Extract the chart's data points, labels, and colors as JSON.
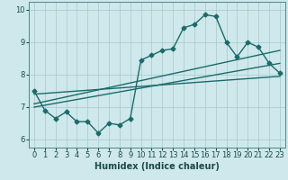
{
  "title": "",
  "xlabel": "Humidex (Indice chaleur)",
  "ylabel": "",
  "bg_color": "#cfe8eb",
  "grid_color": "#aacdd2",
  "line_color": "#1a6b6b",
  "xlim": [
    -0.5,
    23.5
  ],
  "ylim": [
    5.75,
    10.25
  ],
  "xticks": [
    0,
    1,
    2,
    3,
    4,
    5,
    6,
    7,
    8,
    9,
    10,
    11,
    12,
    13,
    14,
    15,
    16,
    17,
    18,
    19,
    20,
    21,
    22,
    23
  ],
  "yticks": [
    6,
    7,
    8,
    9,
    10
  ],
  "main_line_x": [
    0,
    1,
    2,
    3,
    4,
    5,
    6,
    7,
    8,
    9,
    10,
    11,
    12,
    13,
    14,
    15,
    16,
    17,
    18,
    19,
    20,
    21,
    22,
    23
  ],
  "main_line_y": [
    7.5,
    6.9,
    6.65,
    6.85,
    6.55,
    6.55,
    6.2,
    6.5,
    6.45,
    6.65,
    8.45,
    8.6,
    8.75,
    8.8,
    9.45,
    9.55,
    9.85,
    9.8,
    9.0,
    8.55,
    9.0,
    8.85,
    8.35,
    8.05
  ],
  "trend1_x": [
    0,
    23
  ],
  "trend1_y": [
    7.0,
    8.35
  ],
  "trend2_x": [
    0,
    23
  ],
  "trend2_y": [
    7.1,
    8.75
  ],
  "trend3_x": [
    0,
    23
  ],
  "trend3_y": [
    7.4,
    7.95
  ],
  "marker": "D",
  "markersize": 2.5,
  "linewidth": 1.0,
  "xlabel_fontsize": 7,
  "tick_fontsize": 6
}
